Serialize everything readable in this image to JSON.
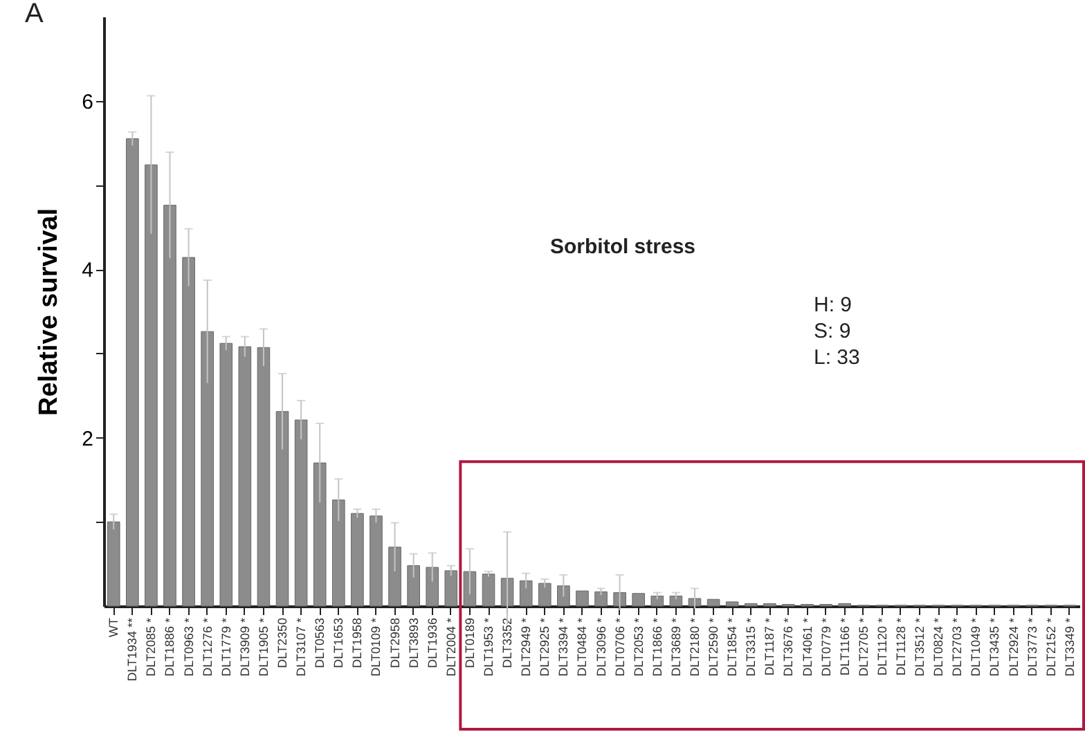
{
  "chart_data": {
    "type": "bar",
    "ylabel": "Relative survival",
    "categories": [
      "WT",
      "DLT1934 **",
      "DLT2085 *",
      "DLT1886 *",
      "DLT0963 *",
      "DLT1276 *",
      "DLT1779 *",
      "DLT3909 *",
      "DLT1905 *",
      "DLT2350",
      "DLT3107 *",
      "DLT0563",
      "DLT1653",
      "DLT1958",
      "DLT0109 *",
      "DLT2958",
      "DLT3893",
      "DLT1936",
      "DLT2004 *",
      "DLT0189",
      "DLT1953 *",
      "DLT3352",
      "DLT2949 *",
      "DLT2925 *",
      "DLT3394 *",
      "DLT0484 *",
      "DLT3096 *",
      "DLT0706 *",
      "DLT2053 *",
      "DLT1866 *",
      "DLT3689 *",
      "DLT2180 *",
      "DLT2590 *",
      "DLT1854 *",
      "DLT3315 *",
      "DLT1187 *",
      "DLT3676 *",
      "DLT4061 *",
      "DLT0779 *",
      "DLT1166 *",
      "DLT2705 *",
      "DLT1120 *",
      "DLT1128 *",
      "DLT3512 *",
      "DLT0824 *",
      "DLT2703 *",
      "DLT1049 *",
      "DLT3435 *",
      "DLT2924 *",
      "DLT3773 *",
      "DLT2152 *",
      "DLT3349 *"
    ],
    "values": [
      1.0,
      5.55,
      5.24,
      4.76,
      4.14,
      3.26,
      3.12,
      3.08,
      3.07,
      2.31,
      2.21,
      1.7,
      1.26,
      1.1,
      1.07,
      0.7,
      0.48,
      0.46,
      0.42,
      0.41,
      0.38,
      0.33,
      0.3,
      0.27,
      0.24,
      0.18,
      0.17,
      0.16,
      0.15,
      0.12,
      0.12,
      0.09,
      0.08,
      0.05,
      0.03,
      0.03,
      0.02,
      0.02,
      0.02,
      0.03,
      0.01,
      0.01,
      0.01,
      0.01,
      0.01,
      0.01,
      0.01,
      0.01,
      0.01,
      0.01,
      0.01,
      0.01
    ],
    "errors": [
      0.09,
      0.08,
      0.82,
      0.63,
      0.34,
      0.61,
      0.08,
      0.12,
      0.22,
      0.45,
      0.23,
      0.47,
      0.25,
      0.05,
      0.08,
      0.29,
      0.14,
      0.17,
      0.06,
      0.27,
      0.03,
      0.55,
      0.09,
      0.05,
      0.13,
      null,
      0.04,
      0.21,
      null,
      0.04,
      0.04,
      0.12,
      null,
      null,
      null,
      null,
      null,
      null,
      null,
      null,
      null,
      null,
      null,
      null,
      null,
      null,
      null,
      null,
      null,
      null,
      null,
      null
    ],
    "color": "#8c8c8c",
    "ylim": [
      0,
      7
    ],
    "yticks": [
      {
        "value": 1,
        "label": null
      },
      2,
      {
        "value": 3,
        "label": null
      },
      4,
      {
        "value": 5,
        "label": null
      },
      6
    ],
    "grid": false,
    "annotations": [
      "A",
      "Sorbitol stress",
      "H: 9",
      "S: 9",
      "L: 33"
    ]
  }
}
